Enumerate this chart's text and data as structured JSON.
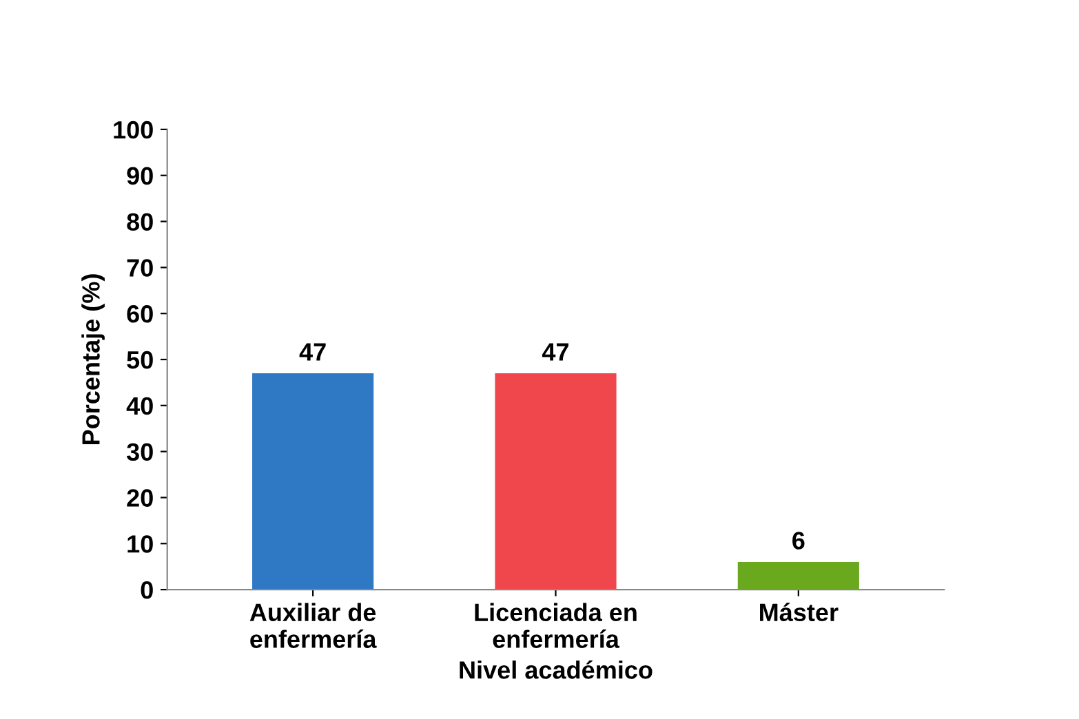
{
  "chart_data": {
    "type": "bar",
    "xlabel": "Nivel académico",
    "ylabel": "Porcentaje (%)",
    "categories": [
      "Auxiliar de\nenfermería",
      "Licenciada en\nenfermería",
      "Máster"
    ],
    "values": [
      47,
      47,
      6
    ],
    "colors": [
      "#2f78c4",
      "#f0474c",
      "#6aa81e"
    ],
    "ylim": [
      0,
      100
    ],
    "yticks": [
      0,
      10,
      20,
      30,
      40,
      50,
      60,
      70,
      80,
      90,
      100
    ],
    "data_labels": true,
    "grid": false,
    "legend": false
  }
}
